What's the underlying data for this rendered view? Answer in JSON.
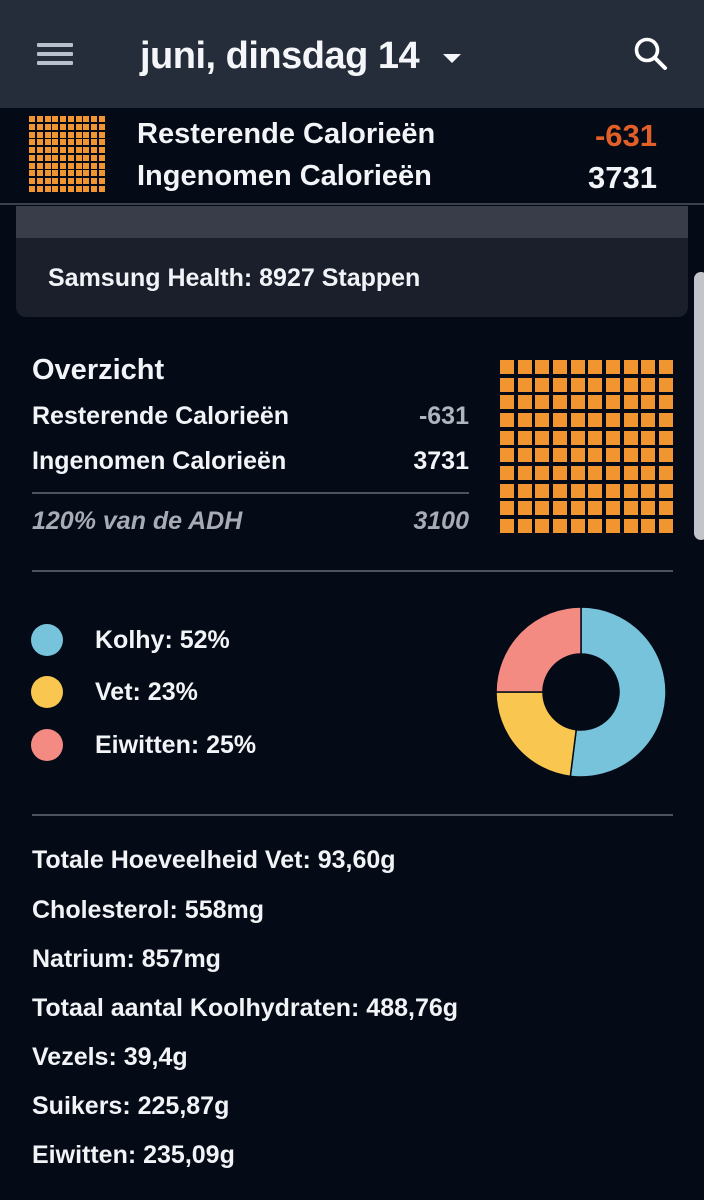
{
  "header": {
    "date_title": "juni, dinsdag 14",
    "menu_icon": "hamburger-menu-icon",
    "dropdown_icon": "caret-down-icon",
    "search_icon": "search-icon"
  },
  "summary": {
    "remaining_label": "Resterende Calorieën",
    "remaining_value": "-631",
    "consumed_label": "Ingenomen Calorieën",
    "consumed_value": "3731",
    "accent_color": "#e25f27",
    "grid_color": "#f0952f"
  },
  "card": {
    "steps_text": "Samsung Health: 8927 Stappen"
  },
  "overview": {
    "title": "Overzicht",
    "remaining_label": "Resterende Calorieën",
    "remaining_value": "-631",
    "consumed_label": "Ingenomen Calorieën",
    "consumed_value": "3731",
    "adh_label": "120% van de ADH",
    "adh_value": "3100"
  },
  "macros": {
    "items": [
      {
        "label": "Kolhy: 52%",
        "color": "#78c3dc",
        "percent": 52
      },
      {
        "label": "Vet: 23%",
        "color": "#f9c74f",
        "percent": 23
      },
      {
        "label": "Eiwitten: 25%",
        "color": "#f38b82",
        "percent": 25
      }
    ]
  },
  "nutrients": [
    "Totale Hoeveelheid Vet: 93,60g",
    "Cholesterol: 558mg",
    "Natrium: 857mg",
    "Totaal aantal Koolhydraten: 488,76g",
    "Vezels: 39,4g",
    "Suikers: 225,87g",
    "Eiwitten: 235,09g"
  ],
  "chart_data": {
    "type": "pie",
    "title": "",
    "categories": [
      "Kolhy",
      "Vet",
      "Eiwitten"
    ],
    "values": [
      52,
      23,
      25
    ],
    "colors": [
      "#78c3dc",
      "#f9c74f",
      "#f38b82"
    ],
    "donut": true,
    "legend_position": "left"
  }
}
